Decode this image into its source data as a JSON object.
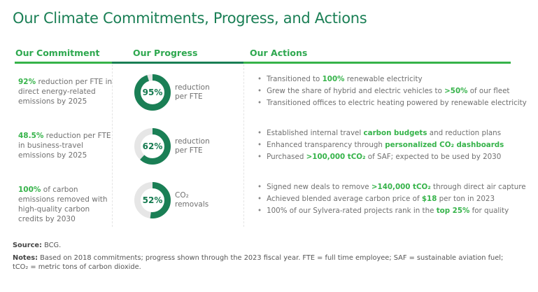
{
  "title": "Our Climate Commitments, Progress, and Actions",
  "headers": {
    "commitment": "Our Commitment",
    "progress": "Our Progress",
    "actions": "Our Actions"
  },
  "colors": {
    "dark_green": "#1a7f55",
    "bright_green": "#36b34a",
    "track": "#e6e6e6"
  },
  "rows": [
    {
      "commitment": [
        {
          "t": "92%",
          "b": true
        },
        {
          "t": " reduction per FTE in direct energy-related emissions by 2025",
          "b": false
        }
      ],
      "progress_value": 95,
      "progress_text": "95%",
      "progress_label": "reduction per FTE",
      "actions": [
        [
          {
            "t": "Transitioned to ",
            "b": false
          },
          {
            "t": "100%",
            "b": true
          },
          {
            "t": " renewable electricity",
            "b": false
          }
        ],
        [
          {
            "t": "Grew the share of hybrid and electric vehicles to ",
            "b": false
          },
          {
            "t": ">50%",
            "b": true
          },
          {
            "t": " of our fleet",
            "b": false
          }
        ],
        [
          {
            "t": "Transitioned offices to electric heating powered by renewable electricity",
            "b": false
          }
        ]
      ]
    },
    {
      "commitment": [
        {
          "t": "48.5%",
          "b": true
        },
        {
          "t": " reduction per FTE in business-travel emissions by 2025",
          "b": false
        }
      ],
      "progress_value": 62,
      "progress_text": "62%",
      "progress_label": "reduction per FTE",
      "actions": [
        [
          {
            "t": "Established internal travel ",
            "b": false
          },
          {
            "t": "carbon budgets",
            "b": true
          },
          {
            "t": " and reduction plans",
            "b": false
          }
        ],
        [
          {
            "t": "Enhanced transparency through ",
            "b": false
          },
          {
            "t": "personalized CO₂ dashboards",
            "b": true
          }
        ],
        [
          {
            "t": "Purchased ",
            "b": false
          },
          {
            "t": ">100,000 tCO₂",
            "b": true
          },
          {
            "t": " of SAF; expected to be used by 2030",
            "b": false
          }
        ]
      ]
    },
    {
      "commitment": [
        {
          "t": "100%",
          "b": true
        },
        {
          "t": " of carbon emissions removed with high-quality carbon credits by 2030",
          "b": false
        }
      ],
      "progress_value": 52,
      "progress_text": "52%",
      "progress_label": "CO₂ removals",
      "actions": [
        [
          {
            "t": "Signed new deals to remove ",
            "b": false
          },
          {
            "t": ">140,000 tCO₂",
            "b": true
          },
          {
            "t": " through direct air capture",
            "b": false
          }
        ],
        [
          {
            "t": "Achieved blended average carbon price of ",
            "b": false
          },
          {
            "t": "$18",
            "b": true
          },
          {
            "t": " per ton in 2023",
            "b": false
          }
        ],
        [
          {
            "t": "100% of our Sylvera-rated projects rank in the ",
            "b": false
          },
          {
            "t": "top 25%",
            "b": true
          },
          {
            "t": " for quality",
            "b": false
          }
        ]
      ]
    }
  ],
  "footer": {
    "source_label": "Source:",
    "source": " BCG.",
    "notes_label": "Notes:",
    "notes": " Based on 2018 commitments; progress shown through the 2023 fiscal year. FTE = full time employee; SAF = sustainable aviation fuel; tCO₂ = metric tons of carbon dioxide."
  }
}
